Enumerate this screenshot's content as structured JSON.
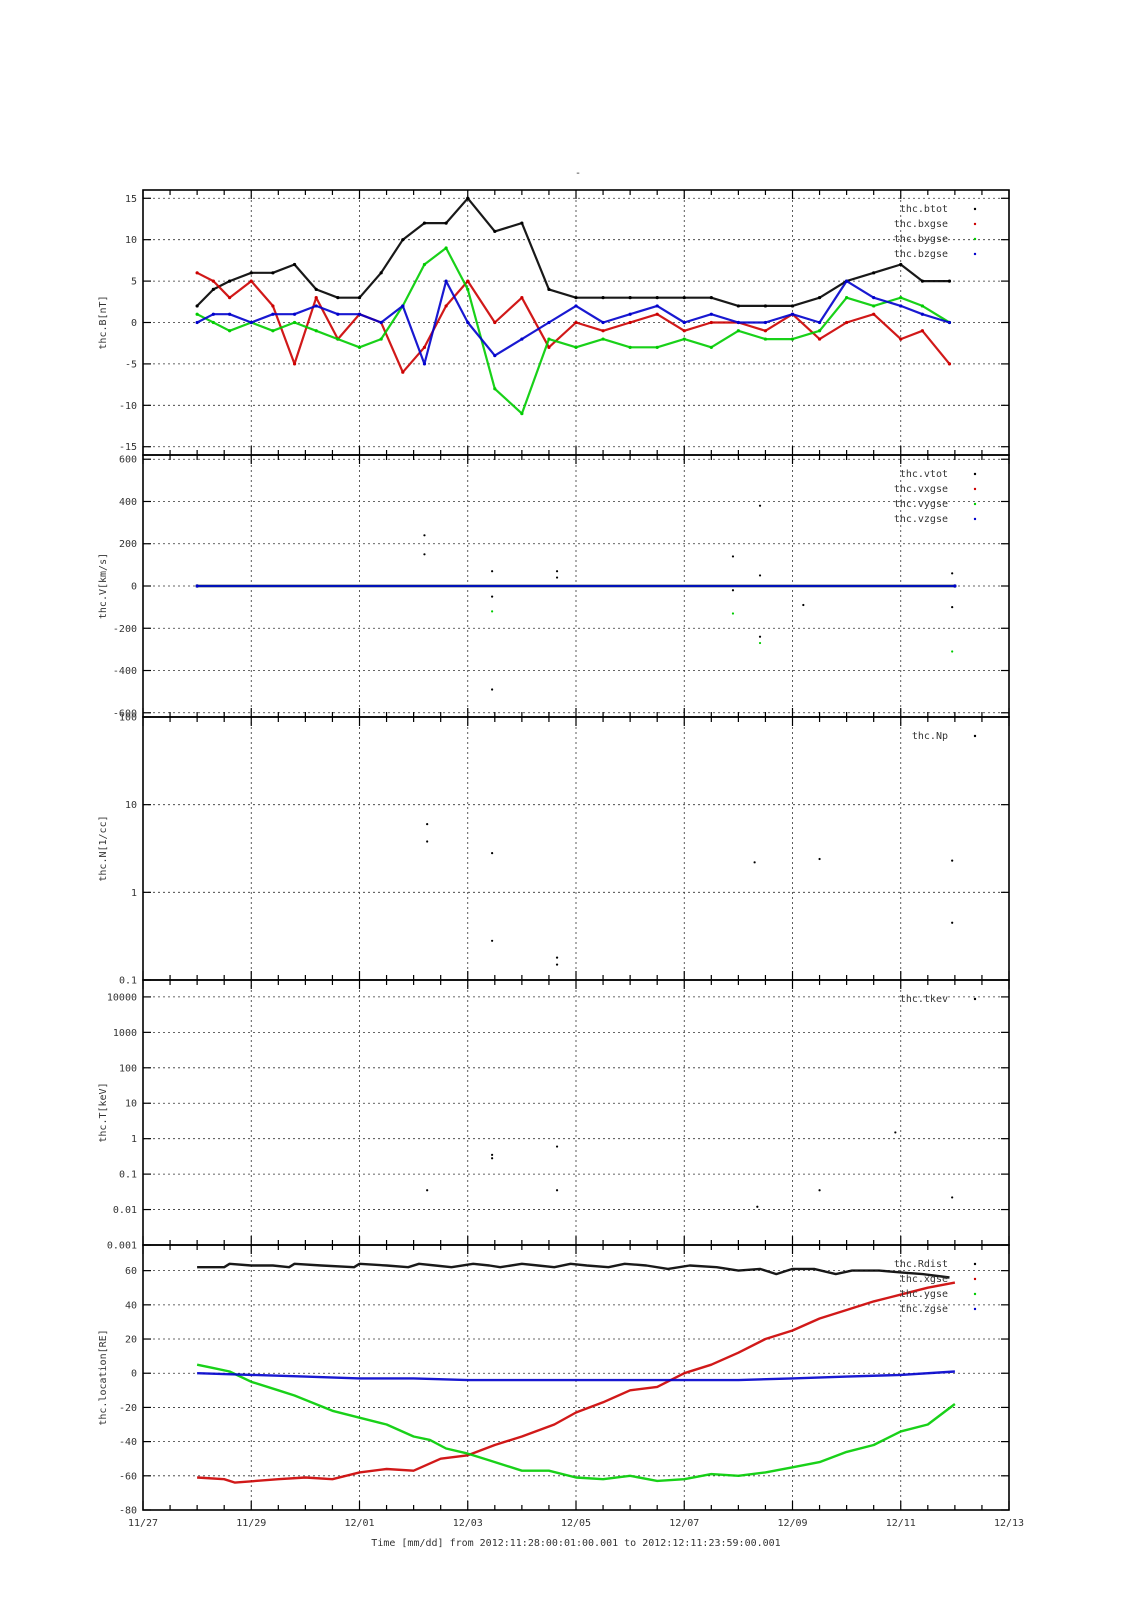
{
  "page": {
    "title_mark": "-",
    "time_caption": "Time [mm/dd]  from 2012:11:28:00:01:00.001  to  2012:12:11:23:59:00.001"
  },
  "chart_data": [
    {
      "type": "scatter",
      "ylabel": "thc.B[nT]",
      "xlim": [
        "11/27",
        "12/13"
      ],
      "ylim": [
        -16,
        16
      ],
      "yscale": "linear",
      "yticks": [
        -15,
        -10,
        -5,
        0,
        5,
        10,
        15
      ],
      "legend_position": "top-right",
      "grid": true,
      "series": [
        {
          "name": "thc.btot",
          "color": "#000000",
          "x_days": [
            1.0,
            1.3,
            1.6,
            2.0,
            2.4,
            2.8,
            3.2,
            3.6,
            4.0,
            4.4,
            4.8,
            5.2,
            5.6,
            6.0,
            6.5,
            7.0,
            7.5,
            8.0,
            8.5,
            9.0,
            9.5,
            10.0,
            10.5,
            11.0,
            11.5,
            12.0,
            12.5,
            13.0,
            13.5,
            14.0,
            14.4,
            14.9
          ],
          "y": [
            2,
            4,
            5,
            6,
            6,
            7,
            4,
            3,
            3,
            6,
            10,
            12,
            12,
            15,
            11,
            12,
            4,
            3,
            3,
            3,
            3,
            3,
            3,
            2,
            2,
            2,
            3,
            5,
            6,
            7,
            5,
            5
          ]
        },
        {
          "name": "thc.bxgse",
          "color": "#cc0000",
          "x_days": [
            1.0,
            1.3,
            1.6,
            2.0,
            2.4,
            2.8,
            3.2,
            3.6,
            4.0,
            4.4,
            4.8,
            5.2,
            5.6,
            6.0,
            6.5,
            7.0,
            7.5,
            8.0,
            8.5,
            9.0,
            9.5,
            10.0,
            10.5,
            11.0,
            11.5,
            12.0,
            12.5,
            13.0,
            13.5,
            14.0,
            14.4,
            14.9
          ],
          "y": [
            6,
            5,
            3,
            5,
            2,
            -5,
            3,
            -2,
            1,
            0,
            -6,
            -3,
            2,
            5,
            0,
            3,
            -3,
            0,
            -1,
            0,
            1,
            -1,
            0,
            0,
            -1,
            1,
            -2,
            0,
            1,
            -2,
            -1,
            -5
          ]
        },
        {
          "name": "thc.bygse",
          "color": "#00cc00",
          "x_days": [
            1.0,
            1.3,
            1.6,
            2.0,
            2.4,
            2.8,
            3.2,
            3.6,
            4.0,
            4.4,
            4.8,
            5.2,
            5.6,
            6.0,
            6.5,
            7.0,
            7.5,
            8.0,
            8.5,
            9.0,
            9.5,
            10.0,
            10.5,
            11.0,
            11.5,
            12.0,
            12.5,
            13.0,
            13.5,
            14.0,
            14.4,
            14.9
          ],
          "y": [
            1,
            0,
            -1,
            0,
            -1,
            0,
            -1,
            -2,
            -3,
            -2,
            2,
            7,
            9,
            4,
            -8,
            -11,
            -2,
            -3,
            -2,
            -3,
            -3,
            -2,
            -3,
            -1,
            -2,
            -2,
            -1,
            3,
            2,
            3,
            2,
            0
          ]
        },
        {
          "name": "thc.bzgse",
          "color": "#0000cc",
          "x_days": [
            1.0,
            1.3,
            1.6,
            2.0,
            2.4,
            2.8,
            3.2,
            3.6,
            4.0,
            4.4,
            4.8,
            5.2,
            5.6,
            6.0,
            6.5,
            7.0,
            7.5,
            8.0,
            8.5,
            9.0,
            9.5,
            10.0,
            10.5,
            11.0,
            11.5,
            12.0,
            12.5,
            13.0,
            13.5,
            14.0,
            14.4,
            14.9
          ],
          "y": [
            0,
            1,
            1,
            0,
            1,
            1,
            2,
            1,
            1,
            0,
            2,
            -5,
            5,
            0,
            -4,
            -2,
            0,
            2,
            0,
            1,
            2,
            0,
            1,
            0,
            0,
            1,
            0,
            5,
            3,
            2,
            1,
            0
          ]
        }
      ]
    },
    {
      "type": "scatter",
      "ylabel": "thc.V[km/s]",
      "xlim": [
        "11/27",
        "12/13"
      ],
      "ylim": [
        -620,
        620
      ],
      "yscale": "linear",
      "yticks": [
        -600,
        -400,
        -200,
        0,
        200,
        400,
        600
      ],
      "legend_position": "top-right",
      "grid": true,
      "series": [
        {
          "name": "thc.vtot",
          "color": "#000000",
          "x_days": [
            1.0,
            15.0
          ],
          "y": [
            0,
            0
          ]
        },
        {
          "name": "thc.vxgse",
          "color": "#cc0000",
          "x_days": [
            1.0,
            15.0
          ],
          "y": [
            0,
            0
          ]
        },
        {
          "name": "thc.vygse",
          "color": "#00cc00",
          "x_days": [
            1.0,
            15.0
          ],
          "y": [
            0,
            0
          ]
        },
        {
          "name": "thc.vzgse",
          "color": "#0000cc",
          "x_days": [
            1.0,
            15.0
          ],
          "y": [
            0,
            0
          ]
        }
      ],
      "scatter_points": [
        {
          "x_days": 5.2,
          "y": 240,
          "color": "#000000"
        },
        {
          "x_days": 5.2,
          "y": 150,
          "color": "#000000"
        },
        {
          "x_days": 6.45,
          "y": 70,
          "color": "#000000"
        },
        {
          "x_days": 6.45,
          "y": -50,
          "color": "#000000"
        },
        {
          "x_days": 6.45,
          "y": -120,
          "color": "#00cc00"
        },
        {
          "x_days": 6.45,
          "y": -490,
          "color": "#000000"
        },
        {
          "x_days": 7.65,
          "y": 70,
          "color": "#000000"
        },
        {
          "x_days": 7.65,
          "y": 40,
          "color": "#000000"
        },
        {
          "x_days": 10.9,
          "y": 140,
          "color": "#000000"
        },
        {
          "x_days": 10.9,
          "y": -20,
          "color": "#000000"
        },
        {
          "x_days": 10.9,
          "y": -130,
          "color": "#00cc00"
        },
        {
          "x_days": 11.4,
          "y": 380,
          "color": "#000000"
        },
        {
          "x_days": 11.4,
          "y": 50,
          "color": "#000000"
        },
        {
          "x_days": 11.4,
          "y": -240,
          "color": "#000000"
        },
        {
          "x_days": 11.4,
          "y": -270,
          "color": "#00cc00"
        },
        {
          "x_days": 12.2,
          "y": -90,
          "color": "#000000"
        },
        {
          "x_days": 14.95,
          "y": 60,
          "color": "#000000"
        },
        {
          "x_days": 14.95,
          "y": -100,
          "color": "#000000"
        },
        {
          "x_days": 14.95,
          "y": -310,
          "color": "#00cc00"
        }
      ]
    },
    {
      "type": "scatter",
      "ylabel": "thc.N[1/cc]",
      "xlim": [
        "11/27",
        "12/13"
      ],
      "ylim": [
        0.1,
        100
      ],
      "yscale": "log",
      "yticks": [
        0.1,
        1,
        10,
        100
      ],
      "legend_position": "top-right",
      "grid": true,
      "series": [
        {
          "name": "thc.Np",
          "color": "#000000",
          "x_days": [],
          "y": []
        }
      ],
      "scatter_points": [
        {
          "x_days": 5.25,
          "y": 6.0,
          "color": "#000000"
        },
        {
          "x_days": 5.25,
          "y": 3.8,
          "color": "#000000"
        },
        {
          "x_days": 6.45,
          "y": 2.8,
          "color": "#000000"
        },
        {
          "x_days": 6.45,
          "y": 0.28,
          "color": "#000000"
        },
        {
          "x_days": 7.65,
          "y": 0.18,
          "color": "#000000"
        },
        {
          "x_days": 7.65,
          "y": 0.15,
          "color": "#000000"
        },
        {
          "x_days": 11.3,
          "y": 2.2,
          "color": "#000000"
        },
        {
          "x_days": 12.5,
          "y": 2.4,
          "color": "#000000"
        },
        {
          "x_days": 14.95,
          "y": 2.3,
          "color": "#000000"
        },
        {
          "x_days": 14.95,
          "y": 0.45,
          "color": "#000000"
        }
      ]
    },
    {
      "type": "scatter",
      "ylabel": "thc.T[keV]",
      "xlim": [
        "11/27",
        "12/13"
      ],
      "ylim": [
        0.001,
        30000
      ],
      "yscale": "log",
      "yticks": [
        0.001,
        0.01,
        0.1,
        1,
        10,
        100,
        1000,
        10000
      ],
      "ytick_labels": [
        "0.001",
        "0.01",
        "0.1",
        "1",
        "10",
        "100",
        "1000",
        "10000"
      ],
      "legend_position": "top-right",
      "grid": true,
      "series": [
        {
          "name": "thc.tkev",
          "color": "#000000",
          "x_days": [],
          "y": []
        }
      ],
      "scatter_points": [
        {
          "x_days": 5.25,
          "y": 0.035,
          "color": "#000000"
        },
        {
          "x_days": 6.45,
          "y": 0.35,
          "color": "#000000"
        },
        {
          "x_days": 6.45,
          "y": 0.28,
          "color": "#000000"
        },
        {
          "x_days": 7.65,
          "y": 0.6,
          "color": "#000000"
        },
        {
          "x_days": 7.65,
          "y": 0.035,
          "color": "#000000"
        },
        {
          "x_days": 11.35,
          "y": 0.012,
          "color": "#000000"
        },
        {
          "x_days": 12.5,
          "y": 0.035,
          "color": "#000000"
        },
        {
          "x_days": 13.9,
          "y": 1.5,
          "color": "#000000"
        },
        {
          "x_days": 14.95,
          "y": 0.022,
          "color": "#000000"
        }
      ]
    },
    {
      "type": "line",
      "ylabel": "thc.location[RE]",
      "xlim": [
        "11/27",
        "12/13"
      ],
      "ylim": [
        -80,
        75
      ],
      "yscale": "linear",
      "yticks": [
        -80,
        -60,
        -40,
        -20,
        0,
        20,
        40,
        60
      ],
      "xtick_labels": [
        "11/27",
        "11/29",
        "12/01",
        "12/03",
        "12/05",
        "12/07",
        "12/09",
        "12/11",
        "12/13"
      ],
      "legend_position": "top-right",
      "grid": true,
      "series": [
        {
          "name": "thc.Rdist",
          "color": "#000000",
          "x_days": [
            1.0,
            1.5,
            1.6,
            2.0,
            2.4,
            2.7,
            2.8,
            3.3,
            3.9,
            4.0,
            4.5,
            4.9,
            5.1,
            5.4,
            5.7,
            6.1,
            6.4,
            6.6,
            7.0,
            7.3,
            7.6,
            7.9,
            8.2,
            8.6,
            8.9,
            9.3,
            9.7,
            10.1,
            10.6,
            11.0,
            11.4,
            11.7,
            12.0,
            12.4,
            12.8,
            13.1,
            13.6,
            14.0,
            14.4,
            14.9
          ],
          "y": [
            62,
            62,
            64,
            63,
            63,
            62,
            64,
            63,
            62,
            64,
            63,
            62,
            64,
            63,
            62,
            64,
            63,
            62,
            64,
            63,
            62,
            64,
            63,
            62,
            64,
            63,
            61,
            63,
            62,
            60,
            61,
            58,
            61,
            61,
            58,
            60,
            60,
            59,
            58,
            56
          ]
        },
        {
          "name": "thc.xgse",
          "color": "#cc0000",
          "x_days": [
            1.0,
            1.5,
            1.7,
            2.5,
            3.0,
            3.5,
            4.0,
            4.5,
            5.0,
            5.5,
            6.0,
            6.5,
            7.0,
            7.6,
            8.0,
            8.5,
            9.0,
            9.5,
            10.0,
            10.5,
            11.0,
            11.5,
            12.0,
            12.5,
            13.0,
            13.5,
            14.0,
            14.5,
            15.0
          ],
          "y": [
            -61,
            -62,
            -64,
            -62,
            -61,
            -62,
            -58,
            -56,
            -57,
            -50,
            -48,
            -42,
            -37,
            -30,
            -23,
            -17,
            -10,
            -8,
            0,
            5,
            12,
            20,
            25,
            32,
            37,
            42,
            46,
            50,
            53
          ]
        },
        {
          "name": "thc.ygse",
          "color": "#00cc00",
          "x_days": [
            1.0,
            1.3,
            1.6,
            2.0,
            2.5,
            2.8,
            3.5,
            4.0,
            4.5,
            5.0,
            5.3,
            5.6,
            6.0,
            6.4,
            7.0,
            7.5,
            8.0,
            8.5,
            9.0,
            9.5,
            10.0,
            10.5,
            11.0,
            11.5,
            12.0,
            12.5,
            13.0,
            13.5,
            14.0,
            14.5,
            15.0
          ],
          "y": [
            5,
            3,
            1,
            -5,
            -10,
            -13,
            -22,
            -26,
            -30,
            -37,
            -39,
            -44,
            -47,
            -51,
            -57,
            -57,
            -61,
            -62,
            -60,
            -63,
            -62,
            -59,
            -60,
            -58,
            -55,
            -52,
            -46,
            -42,
            -34,
            -30,
            -18
          ]
        },
        {
          "name": "thc.zgse",
          "color": "#0000cc",
          "x_days": [
            1.0,
            2.0,
            3.0,
            4.0,
            5.0,
            6.0,
            7.0,
            8.0,
            9.0,
            10.0,
            11.0,
            12.0,
            13.0,
            14.0,
            15.0
          ],
          "y": [
            0,
            -1,
            -2,
            -3,
            -3,
            -4,
            -4,
            -4,
            -4,
            -4,
            -4,
            -3,
            -2,
            -1,
            1
          ]
        }
      ]
    }
  ]
}
